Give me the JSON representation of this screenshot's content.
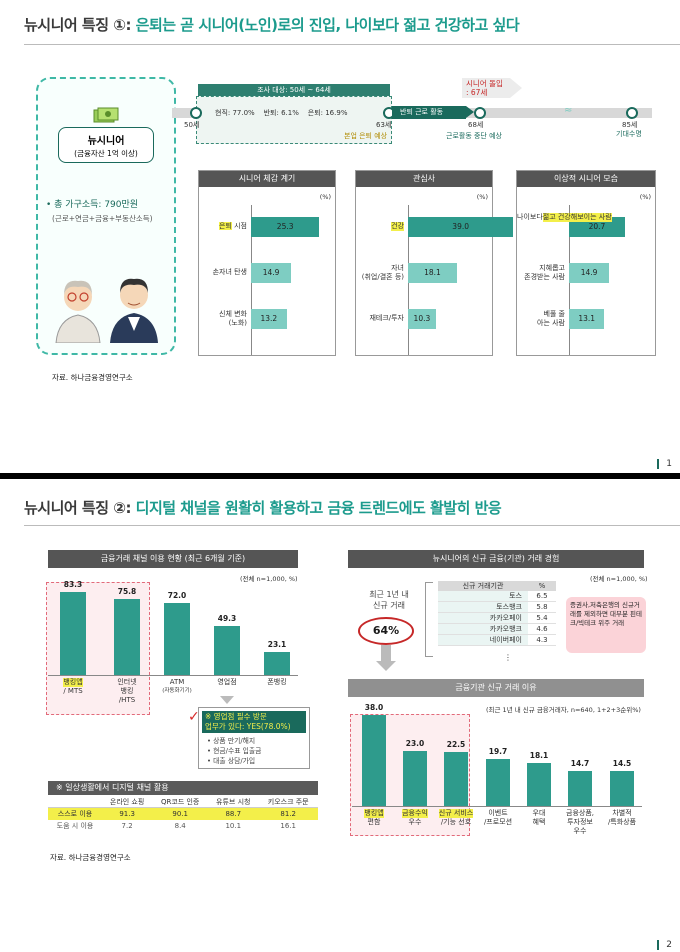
{
  "slide1": {
    "title_prefix": "뉴시니어 특징 ①:",
    "title_main": " 은퇴는 곧 시니어(노인)로의 진입, 나이보다 젊고 건강하고 싶다",
    "page_number": "1",
    "profile": {
      "name": "뉴시니어",
      "subtitle": "(금융자산 1억 이상)",
      "income": "• 총 가구소득: 790만원",
      "income_detail": "(근로+연금+금융+부동산소득)"
    },
    "timeline": {
      "survey_label": "조사 대상: 50세 ~ 64세",
      "stats": [
        "현직: 77.0%",
        "반퇴: 6.1%",
        "은퇴: 16.9%"
      ],
      "age_50": "50세",
      "age_63": "63세",
      "retire_expected": "본업 은퇴 예상",
      "semi_retire": "반퇴 근로 활동",
      "age_68": "68세",
      "stop_work": "근로활동 중단 예상",
      "senior_entry_1": "시니어 돌입",
      "senior_entry_2": ": 67세",
      "age_85": "85세",
      "life_expect": "기대수명"
    },
    "panels": [
      {
        "header": "시니어 체감 계기",
        "unit": "(%)",
        "rows": [
          {
            "label": "은퇴 시점",
            "label_hl": "은퇴",
            "label_rest": " 시점",
            "value": 25.3,
            "value_text": "25.3"
          },
          {
            "label": "손자녀 탄생",
            "value": 14.9,
            "value_text": "14.9"
          },
          {
            "label": "신체 변화",
            "label2": "(노화)",
            "value": 13.2,
            "value_text": "13.2"
          }
        ]
      },
      {
        "header": "관심사",
        "unit": "(%)",
        "rows": [
          {
            "label": "건강",
            "value": 39.0,
            "value_text": "39.0"
          },
          {
            "label": "자녀",
            "label2": "(취업/결혼 등)",
            "value": 18.1,
            "value_text": "18.1"
          },
          {
            "label": "재테크/투자",
            "value": 10.3,
            "value_text": "10.3"
          }
        ]
      },
      {
        "header": "이상적 시니어 모습",
        "unit": "(%)",
        "rows": [
          {
            "label": "나이보다",
            "label2": "젊고 건강해",
            "label3": "보이는 사람",
            "value": 20.7,
            "value_text": "20.7"
          },
          {
            "label": "지혜롭고",
            "label2": "존경받는 사람",
            "value": 14.9,
            "value_text": "14.9"
          },
          {
            "label": "베풀 줄",
            "label2": "아는 사람",
            "value": 13.1,
            "value_text": "13.1"
          }
        ]
      }
    ],
    "source": "자료. 하나금융경영연구소"
  },
  "slide2": {
    "title_prefix": "뉴시니어 특징 ②:",
    "title_main": " 디지털 채널을 원활히 활용하고 금융 트렌드에도 활발히 반응",
    "page_number": "2",
    "left": {
      "header": "금융거래 채널 이용 현황 (최근 6개월 기준)",
      "unit": "(전체 n=1,000, %)",
      "bars": [
        {
          "label": "뱅킹앱",
          "label2": "/ MTS",
          "value": 83.3,
          "value_text": "83.3"
        },
        {
          "label": "인터넷",
          "label2": "뱅킹",
          "label3": "/HTS",
          "value": 75.8,
          "value_text": "75.8"
        },
        {
          "label": "ATM",
          "label2": "(자동화기기)",
          "value": 72.0,
          "value_text": "72.0"
        },
        {
          "label": "영업점",
          "value": 49.3,
          "value_text": "49.3"
        },
        {
          "label": "폰뱅킹",
          "value": 23.1,
          "value_text": "23.1"
        }
      ],
      "branch_title": "※ 영업점 필수 방문",
      "branch_answer": "업무가 있다: YES(78.0%)",
      "branch_items": [
        "상품 만기/해지",
        "현금/수표 입출금",
        "대출 상담/가입"
      ],
      "digital_title": "※ 일상생활에서 디지털 채널 활용",
      "digital_headers": [
        "",
        "온라인 쇼핑",
        "QR코드 인증",
        "유튜브 시청",
        "키오스크 주문"
      ],
      "digital_rows": [
        {
          "name": "스스로 이용",
          "values": [
            "91.3",
            "90.1",
            "88.7",
            "81.2"
          ]
        },
        {
          "name": "도움 시 이용",
          "values": [
            "7.2",
            "8.4",
            "10.1",
            "16.1"
          ]
        }
      ]
    },
    "right": {
      "header": "뉴시니어의 신규 금융(기관) 거래 경험",
      "unit": "(전체 n=1,000, %)",
      "circle_label1": "최근 1년 내",
      "circle_label2": "신규 거래",
      "circle_value": "64%",
      "inst_headers": [
        "신규 거래기관",
        "%"
      ],
      "institutions": [
        {
          "name": "토스",
          "value": "6.5"
        },
        {
          "name": "토스뱅크",
          "value": "5.8"
        },
        {
          "name": "카카오페이",
          "value": "5.4"
        },
        {
          "name": "카카오뱅크",
          "value": "4.6"
        },
        {
          "name": "네이버페이",
          "value": "4.3"
        }
      ],
      "ellipsis": "⋮",
      "note": "증권사,저축은행의 신규거래를 제외하면 대부분 핀테크/빅테크 위주 거래",
      "reason_header": "금융기관 신규 거래 이유",
      "reason_unit": "(최근 1년 내 신규 금융거래자, n=640, 1+2+3순위%)",
      "reasons": [
        {
          "label": "뱅킹앱",
          "label2": "편함",
          "value": 38.0,
          "value_text": "38.0"
        },
        {
          "label": "금융수익",
          "label2": "우수",
          "value": 23.0,
          "value_text": "23.0"
        },
        {
          "label": "신규 서비스",
          "label2": "/기능 선호",
          "value": 22.5,
          "value_text": "22.5"
        },
        {
          "label": "이벤트",
          "label2": "/프로모션",
          "value": 19.7,
          "value_text": "19.7"
        },
        {
          "label": "우대",
          "label2": "혜택",
          "value": 18.1,
          "value_text": "18.1"
        },
        {
          "label": "금융상품,",
          "label2": "투자정보",
          "label3": "우수",
          "value": 14.7,
          "value_text": "14.7"
        },
        {
          "label": "차별적",
          "label2": "/특화상품",
          "value": 14.5,
          "value_text": "14.5"
        }
      ]
    },
    "source": "자료. 하나금융경영연구소"
  },
  "colors": {
    "teal": "#2e9b8c",
    "light_teal": "#7ecdc2",
    "highlight": "#f3ef4a",
    "dark_teal": "#1a6a5c"
  }
}
